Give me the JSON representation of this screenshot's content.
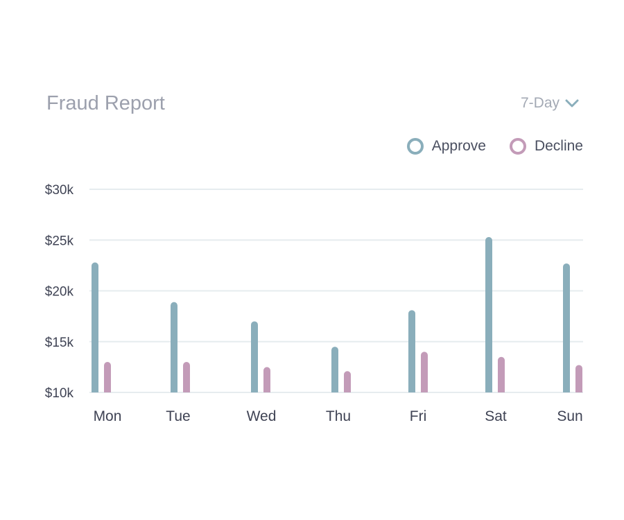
{
  "header": {
    "title": "Fraud Report",
    "range_label": "7-Day",
    "range_icon": "chevron-down-icon"
  },
  "legend": [
    {
      "label": "Approve",
      "color": "#8aaebb"
    },
    {
      "label": "Decline",
      "color": "#c39bb8"
    }
  ],
  "colors": {
    "grid": "#e6ecef",
    "tick_text": "#3f4354"
  },
  "chart_data": {
    "type": "bar",
    "title": "Fraud Report",
    "categories": [
      "Mon",
      "Tue",
      "Wed",
      "Thu",
      "Fri",
      "Sat",
      "Sun"
    ],
    "series": [
      {
        "name": "Approve",
        "color": "#8aaebb",
        "values": [
          22.8,
          18.9,
          17.0,
          14.5,
          18.1,
          25.3,
          22.7
        ]
      },
      {
        "name": "Decline",
        "color": "#c39bb8",
        "values": [
          13.0,
          13.0,
          12.5,
          12.1,
          14.0,
          13.5,
          12.7
        ]
      }
    ],
    "y_ticks": [
      "$10k",
      "$15k",
      "$20k",
      "$25k",
      "$30k"
    ],
    "ylim": [
      10,
      30
    ],
    "y_unit": "thousand USD",
    "grid": true,
    "legend_position": "top-right"
  }
}
